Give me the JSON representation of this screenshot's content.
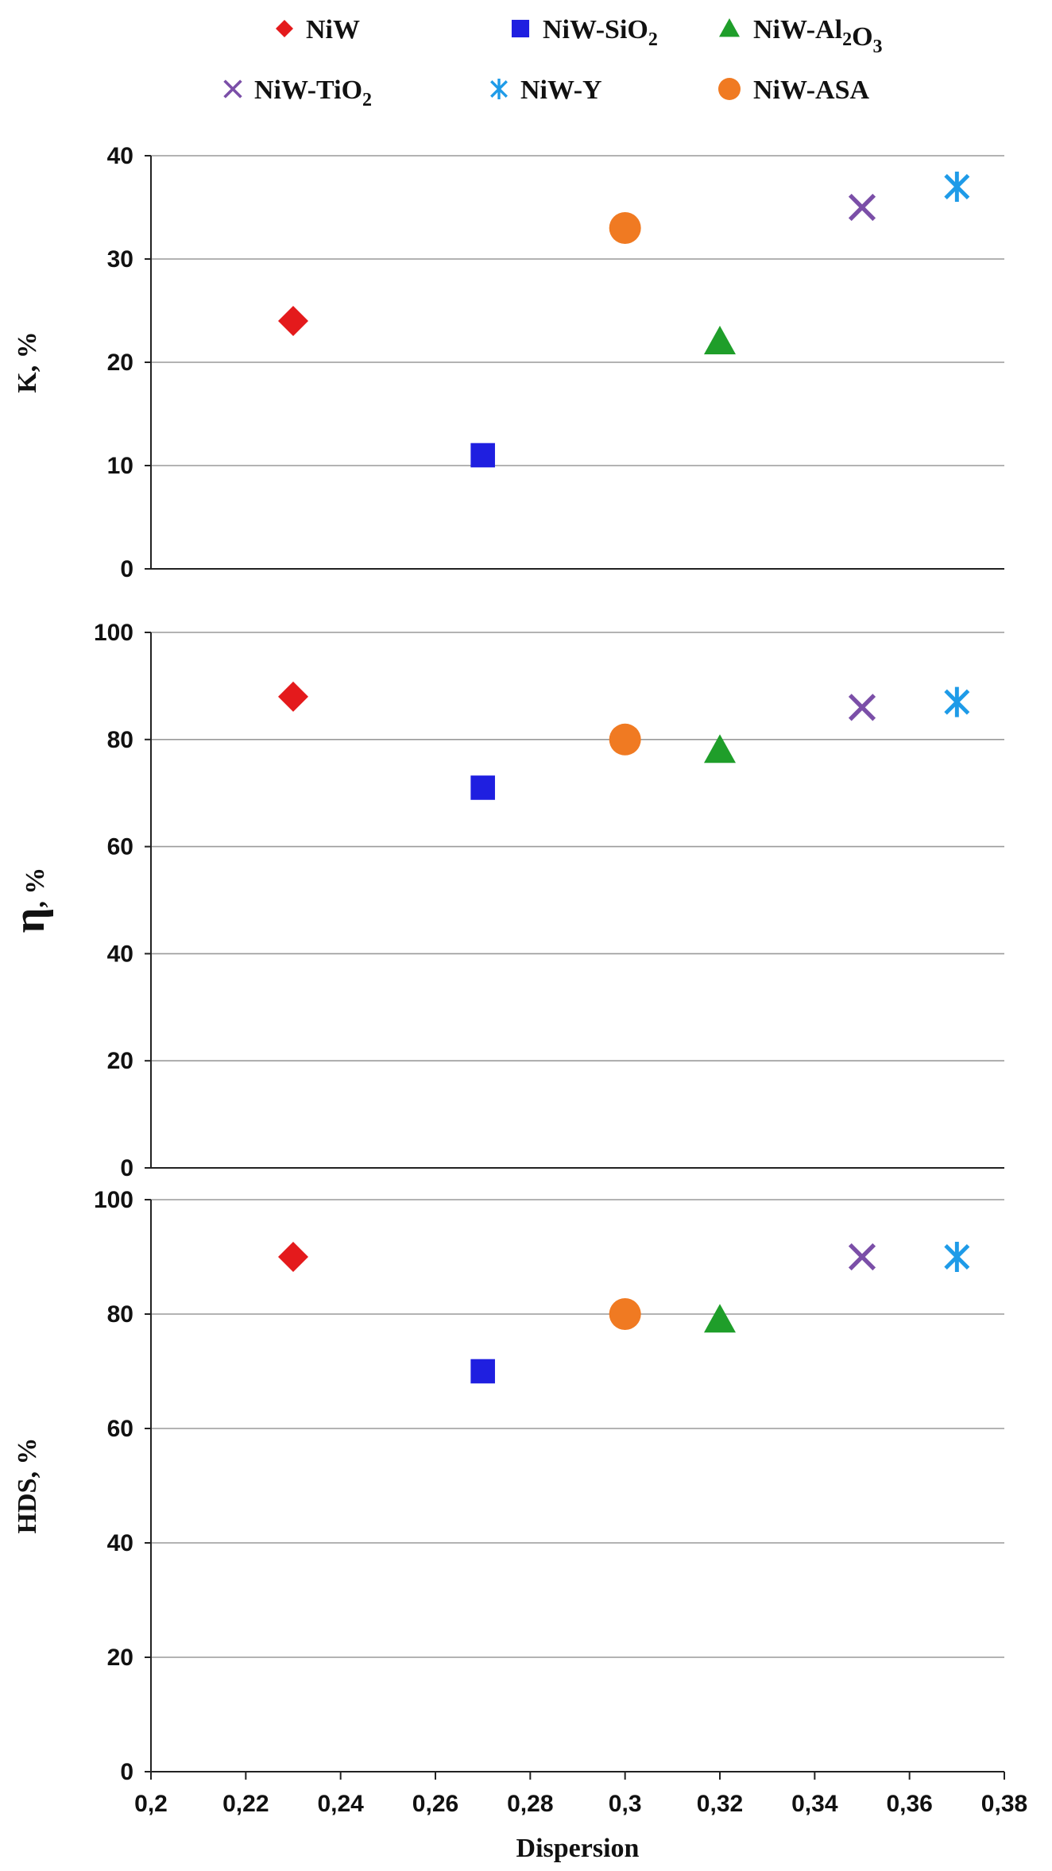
{
  "chart_data": {
    "type": "scatter",
    "legend_position": "top",
    "grid": true,
    "xlabel": "Dispersion",
    "xlim": [
      0.2,
      0.38
    ],
    "x_ticks": [
      "0,2",
      "0,22",
      "0,24",
      "0,26",
      "0,28",
      "0,3",
      "0,32",
      "0,34",
      "0,36",
      "0,38"
    ],
    "series": [
      {
        "name": "NiW",
        "name_parts": [
          "NiW"
        ],
        "color": "#e41a1c",
        "marker": "diamond"
      },
      {
        "name": "NiW-SiO2",
        "name_parts": [
          "NiW-SiO",
          {
            "sub": "2"
          }
        ],
        "color": "#1f1fe0",
        "marker": "square"
      },
      {
        "name": "NiW-Al2O3",
        "name_parts": [
          "NiW-Al",
          {
            "sub": "2"
          },
          "O",
          {
            "sub": "3"
          }
        ],
        "color": "#1f9e2a",
        "marker": "triangle"
      },
      {
        "name": "NiW-TiO2",
        "name_parts": [
          "NiW-TiO",
          {
            "sub": "2"
          }
        ],
        "color": "#7b4fa8",
        "marker": "x"
      },
      {
        "name": "NiW-Y",
        "name_parts": [
          "NiW-Y"
        ],
        "color": "#1e9be8",
        "marker": "star"
      },
      {
        "name": "NiW-ASA",
        "name_parts": [
          "NiW-ASA"
        ],
        "color": "#f07a22",
        "marker": "circle"
      }
    ],
    "panels": [
      {
        "ylabel": "K, %",
        "ylim": [
          0,
          40
        ],
        "y_ticks": [
          "0",
          "10",
          "20",
          "30",
          "40"
        ],
        "points": [
          {
            "series": "NiW",
            "x": 0.23,
            "y": 24
          },
          {
            "series": "NiW-SiO2",
            "x": 0.27,
            "y": 11
          },
          {
            "series": "NiW-Al2O3",
            "x": 0.32,
            "y": 22
          },
          {
            "series": "NiW-TiO2",
            "x": 0.35,
            "y": 35
          },
          {
            "series": "NiW-Y",
            "x": 0.37,
            "y": 37
          },
          {
            "series": "NiW-ASA",
            "x": 0.3,
            "y": 33
          }
        ]
      },
      {
        "ylabel": "η, %",
        "ylim": [
          0,
          100
        ],
        "y_ticks": [
          "0",
          "20",
          "40",
          "60",
          "80",
          "100"
        ],
        "points": [
          {
            "series": "NiW",
            "x": 0.23,
            "y": 88
          },
          {
            "series": "NiW-SiO2",
            "x": 0.27,
            "y": 71
          },
          {
            "series": "NiW-Al2O3",
            "x": 0.32,
            "y": 78
          },
          {
            "series": "NiW-TiO2",
            "x": 0.35,
            "y": 86
          },
          {
            "series": "NiW-Y",
            "x": 0.37,
            "y": 87
          },
          {
            "series": "NiW-ASA",
            "x": 0.3,
            "y": 80
          }
        ]
      },
      {
        "ylabel": "HDS, %",
        "ylim": [
          0,
          100
        ],
        "y_ticks": [
          "0",
          "20",
          "40",
          "60",
          "80",
          "100"
        ],
        "points": [
          {
            "series": "NiW",
            "x": 0.23,
            "y": 90
          },
          {
            "series": "NiW-SiO2",
            "x": 0.27,
            "y": 70
          },
          {
            "series": "NiW-Al2O3",
            "x": 0.32,
            "y": 79
          },
          {
            "series": "NiW-TiO2",
            "x": 0.35,
            "y": 90
          },
          {
            "series": "NiW-Y",
            "x": 0.37,
            "y": 90
          },
          {
            "series": "NiW-ASA",
            "x": 0.3,
            "y": 80
          }
        ]
      }
    ]
  }
}
